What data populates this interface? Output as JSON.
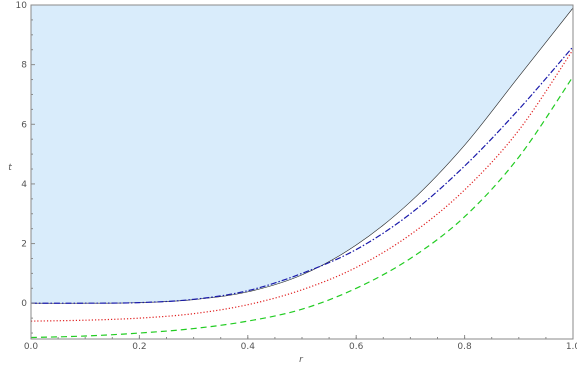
{
  "chart_data": {
    "type": "line",
    "title": "",
    "xlabel": "r",
    "ylabel": "t",
    "xlim": [
      0,
      1
    ],
    "ylim": [
      -1.2,
      10
    ],
    "grid": false,
    "x_ticks": [
      "0.0",
      "0.2",
      "0.4",
      "0.6",
      "0.8",
      "1.0"
    ],
    "y_ticks": [
      "0",
      "2",
      "4",
      "6",
      "8",
      "10"
    ],
    "shaded_region": {
      "color": "#d9ecfb",
      "edge_color": "#222222",
      "lower_boundary": [
        {
          "x": 0.0,
          "y": 0.0
        },
        {
          "x": 0.1,
          "y": 0.0
        },
        {
          "x": 0.2,
          "y": 0.02
        },
        {
          "x": 0.3,
          "y": 0.12
        },
        {
          "x": 0.4,
          "y": 0.38
        },
        {
          "x": 0.5,
          "y": 0.95
        },
        {
          "x": 0.6,
          "y": 1.95
        },
        {
          "x": 0.7,
          "y": 3.4
        },
        {
          "x": 0.8,
          "y": 5.3
        },
        {
          "x": 0.9,
          "y": 7.6
        },
        {
          "x": 1.0,
          "y": 9.9
        }
      ]
    },
    "series": [
      {
        "style": "dash-dot",
        "color": "#1a1aaa",
        "points": [
          {
            "x": 0.0,
            "y": 0.0
          },
          {
            "x": 0.1,
            "y": 0.0
          },
          {
            "x": 0.2,
            "y": 0.02
          },
          {
            "x": 0.3,
            "y": 0.13
          },
          {
            "x": 0.4,
            "y": 0.42
          },
          {
            "x": 0.5,
            "y": 1.0
          },
          {
            "x": 0.6,
            "y": 1.8
          },
          {
            "x": 0.7,
            "y": 3.0
          },
          {
            "x": 0.8,
            "y": 4.6
          },
          {
            "x": 0.9,
            "y": 6.5
          },
          {
            "x": 1.0,
            "y": 8.6
          }
        ]
      },
      {
        "style": "dotted",
        "color": "#e02020",
        "points": [
          {
            "x": 0.0,
            "y": -0.6
          },
          {
            "x": 0.1,
            "y": -0.57
          },
          {
            "x": 0.2,
            "y": -0.5
          },
          {
            "x": 0.3,
            "y": -0.35
          },
          {
            "x": 0.4,
            "y": -0.05
          },
          {
            "x": 0.5,
            "y": 0.45
          },
          {
            "x": 0.6,
            "y": 1.2
          },
          {
            "x": 0.7,
            "y": 2.3
          },
          {
            "x": 0.8,
            "y": 3.8
          },
          {
            "x": 0.9,
            "y": 5.8
          },
          {
            "x": 1.0,
            "y": 8.5
          }
        ]
      },
      {
        "style": "dashed",
        "color": "#22cc22",
        "points": [
          {
            "x": 0.0,
            "y": -1.15
          },
          {
            "x": 0.1,
            "y": -1.1
          },
          {
            "x": 0.2,
            "y": -1.0
          },
          {
            "x": 0.3,
            "y": -0.85
          },
          {
            "x": 0.4,
            "y": -0.6
          },
          {
            "x": 0.5,
            "y": -0.2
          },
          {
            "x": 0.6,
            "y": 0.5
          },
          {
            "x": 0.7,
            "y": 1.5
          },
          {
            "x": 0.8,
            "y": 2.9
          },
          {
            "x": 0.9,
            "y": 4.9
          },
          {
            "x": 1.0,
            "y": 7.6
          }
        ]
      }
    ]
  }
}
